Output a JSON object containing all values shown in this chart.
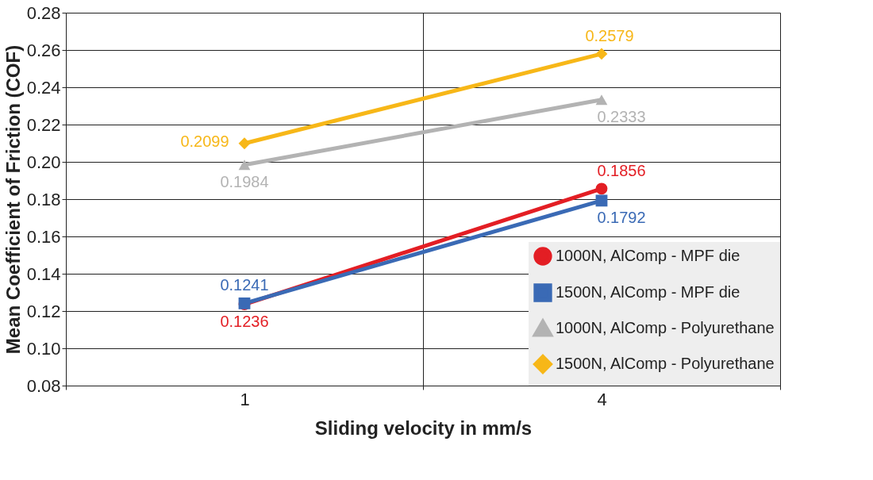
{
  "chart_data": {
    "type": "line",
    "xlabel": "Sliding velocity in mm/s",
    "ylabel": "Mean Coefficient of Friction (COF)",
    "categories": [
      "1",
      "4"
    ],
    "series": [
      {
        "name": "1000N, AlComp - MPF die",
        "color": "#e31e24",
        "marker": "circle",
        "values": [
          0.1236,
          0.1856
        ]
      },
      {
        "name": "1500N, AlComp - MPF die",
        "color": "#3a6ab5",
        "marker": "square",
        "values": [
          0.1241,
          0.1792
        ]
      },
      {
        "name": "1000N, AlComp - Polyurethane",
        "color": "#b3b3b3",
        "marker": "triangle",
        "values": [
          0.1984,
          0.2333
        ]
      },
      {
        "name": "1500N, AlComp - Polyurethane",
        "color": "#f7b718",
        "marker": "diamond",
        "values": [
          0.2099,
          0.2579
        ]
      }
    ],
    "ylim": [
      0.08,
      0.28
    ],
    "yticks": [
      {
        "value": 0.08,
        "label": "0.08"
      },
      {
        "value": 0.1,
        "label": "0.10"
      },
      {
        "value": 0.12,
        "label": "0.12"
      },
      {
        "value": 0.14,
        "label": "0.14"
      },
      {
        "value": 0.16,
        "label": "0.16"
      },
      {
        "value": 0.18,
        "label": "0.18"
      },
      {
        "value": 0.2,
        "label": "0.20"
      },
      {
        "value": 0.22,
        "label": "0.22"
      },
      {
        "value": 0.24,
        "label": "0.24"
      },
      {
        "value": 0.26,
        "label": "0.26"
      },
      {
        "value": 0.28,
        "label": "0.28"
      }
    ],
    "grid": true,
    "legend": "bottom right",
    "data_labels": true,
    "line_style": "solid"
  }
}
